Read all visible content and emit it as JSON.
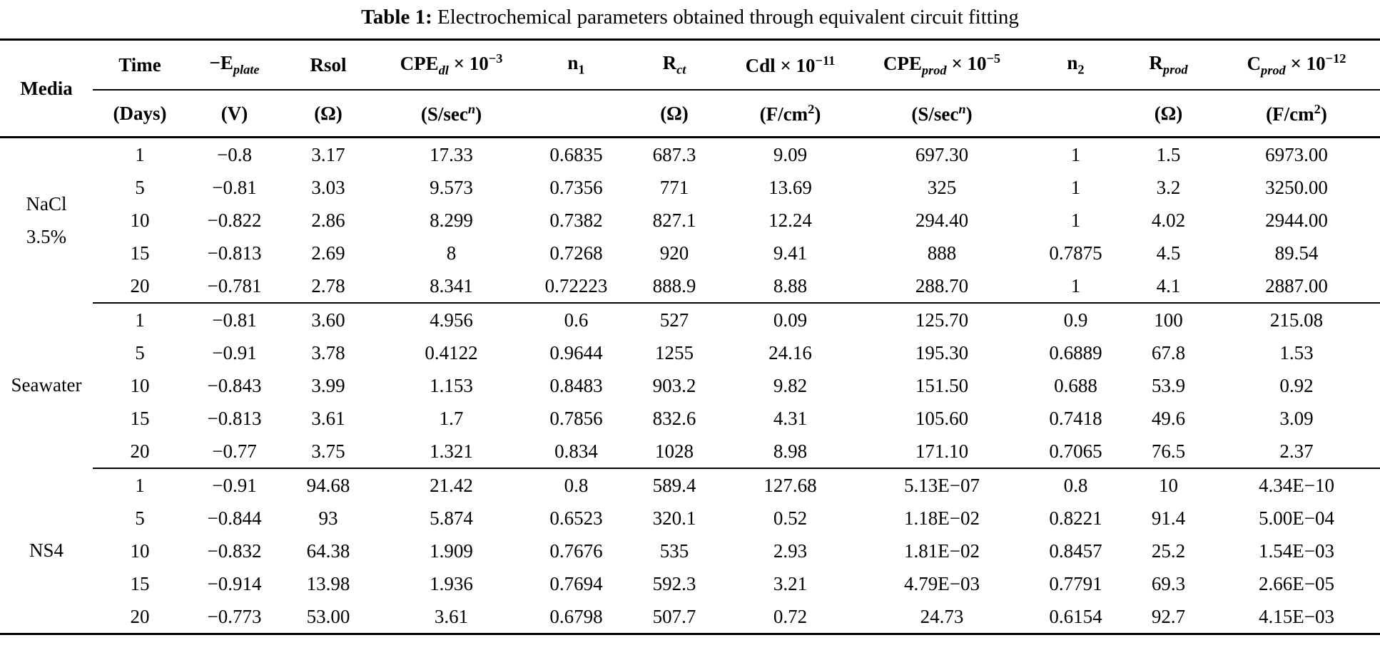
{
  "caption": {
    "label": "Table 1:",
    "text": "Electrochemical parameters obtained through equivalent circuit fitting"
  },
  "table": {
    "header": {
      "media": [
        {
          "t": "t",
          "v": "Media"
        }
      ],
      "row1": [
        {
          "id": "time",
          "parts": [
            {
              "t": "t",
              "v": "Time"
            }
          ]
        },
        {
          "id": "e-plate",
          "parts": [
            {
              "t": "t",
              "v": "−E"
            },
            {
              "t": "sb",
              "v": "plate"
            }
          ]
        },
        {
          "id": "rsol",
          "parts": [
            {
              "t": "t",
              "v": "Rsol"
            }
          ]
        },
        {
          "id": "cpe-dl",
          "parts": [
            {
              "t": "t",
              "v": "CPE"
            },
            {
              "t": "sb",
              "v": "dl"
            },
            {
              "t": "t",
              "v": " × 10"
            },
            {
              "t": "sp",
              "v": "−3"
            }
          ]
        },
        {
          "id": "n1",
          "parts": [
            {
              "t": "t",
              "v": "n"
            },
            {
              "t": "sbn",
              "v": "1"
            }
          ]
        },
        {
          "id": "r-ct",
          "parts": [
            {
              "t": "t",
              "v": "R"
            },
            {
              "t": "sb",
              "v": "ct"
            }
          ]
        },
        {
          "id": "cdl",
          "parts": [
            {
              "t": "t",
              "v": "Cdl × 10"
            },
            {
              "t": "sp",
              "v": "−11"
            }
          ]
        },
        {
          "id": "cpe-prod",
          "parts": [
            {
              "t": "t",
              "v": "CPE"
            },
            {
              "t": "sb",
              "v": "prod"
            },
            {
              "t": "t",
              "v": " × 10"
            },
            {
              "t": "sp",
              "v": "−5"
            }
          ]
        },
        {
          "id": "n2",
          "parts": [
            {
              "t": "t",
              "v": "n"
            },
            {
              "t": "sbn",
              "v": "2"
            }
          ]
        },
        {
          "id": "r-prod",
          "parts": [
            {
              "t": "t",
              "v": "R"
            },
            {
              "t": "sb",
              "v": "prod"
            }
          ]
        },
        {
          "id": "c-prod",
          "parts": [
            {
              "t": "t",
              "v": "C"
            },
            {
              "t": "sb",
              "v": "prod"
            },
            {
              "t": "t",
              "v": " × 10"
            },
            {
              "t": "sp",
              "v": "−12"
            }
          ]
        }
      ],
      "row2": [
        {
          "id": "time",
          "parts": [
            {
              "t": "t",
              "v": "(Days)"
            }
          ]
        },
        {
          "id": "e-plate",
          "parts": [
            {
              "t": "t",
              "v": "(V)"
            }
          ]
        },
        {
          "id": "rsol",
          "parts": [
            {
              "t": "t",
              "v": "(Ω)"
            }
          ]
        },
        {
          "id": "cpe-dl",
          "parts": [
            {
              "t": "t",
              "v": "(S/sec"
            },
            {
              "t": "spi",
              "v": "n"
            },
            {
              "t": "t",
              "v": ")"
            }
          ]
        },
        {
          "id": "n1",
          "parts": []
        },
        {
          "id": "r-ct",
          "parts": [
            {
              "t": "t",
              "v": "(Ω)"
            }
          ]
        },
        {
          "id": "cdl",
          "parts": [
            {
              "t": "t",
              "v": "(F/cm"
            },
            {
              "t": "sp",
              "v": "2"
            },
            {
              "t": "t",
              "v": ")"
            }
          ]
        },
        {
          "id": "cpe-prod",
          "parts": [
            {
              "t": "t",
              "v": "(S/sec"
            },
            {
              "t": "spi",
              "v": "n"
            },
            {
              "t": "t",
              "v": ")"
            }
          ]
        },
        {
          "id": "n2",
          "parts": []
        },
        {
          "id": "r-prod",
          "parts": [
            {
              "t": "t",
              "v": "(Ω)"
            }
          ]
        },
        {
          "id": "c-prod",
          "parts": [
            {
              "t": "t",
              "v": "(F/cm"
            },
            {
              "t": "sp",
              "v": "2"
            },
            {
              "t": "t",
              "v": ")"
            }
          ]
        }
      ]
    },
    "column_ids": [
      "time",
      "e-plate",
      "rsol",
      "cpe-dl",
      "n1",
      "r-ct",
      "cdl",
      "cpe-prod",
      "n2",
      "r-prod",
      "c-prod"
    ],
    "groups": [
      {
        "media_id": "nacl",
        "media_lines": [
          "NaCl",
          "3.5%"
        ],
        "rows": [
          [
            "1",
            "−0.8",
            "3.17",
            "17.33",
            "0.6835",
            "687.3",
            "9.09",
            "697.30",
            "1",
            "1.5",
            "6973.00"
          ],
          [
            "5",
            "−0.81",
            "3.03",
            "9.573",
            "0.7356",
            "771",
            "13.69",
            "325",
            "1",
            "3.2",
            "3250.00"
          ],
          [
            "10",
            "−0.822",
            "2.86",
            "8.299",
            "0.7382",
            "827.1",
            "12.24",
            "294.40",
            "1",
            "4.02",
            "2944.00"
          ],
          [
            "15",
            "−0.813",
            "2.69",
            "8",
            "0.7268",
            "920",
            "9.41",
            "888",
            "0.7875",
            "4.5",
            "89.54"
          ],
          [
            "20",
            "−0.781",
            "2.78",
            "8.341",
            "0.72223",
            "888.9",
            "8.88",
            "288.70",
            "1",
            "4.1",
            "2887.00"
          ]
        ]
      },
      {
        "media_id": "seawater",
        "media_lines": [
          "Seawater"
        ],
        "rows": [
          [
            "1",
            "−0.81",
            "3.60",
            "4.956",
            "0.6",
            "527",
            "0.09",
            "125.70",
            "0.9",
            "100",
            "215.08"
          ],
          [
            "5",
            "−0.91",
            "3.78",
            "0.4122",
            "0.9644",
            "1255",
            "24.16",
            "195.30",
            "0.6889",
            "67.8",
            "1.53"
          ],
          [
            "10",
            "−0.843",
            "3.99",
            "1.153",
            "0.8483",
            "903.2",
            "9.82",
            "151.50",
            "0.688",
            "53.9",
            "0.92"
          ],
          [
            "15",
            "−0.813",
            "3.61",
            "1.7",
            "0.7856",
            "832.6",
            "4.31",
            "105.60",
            "0.7418",
            "49.6",
            "3.09"
          ],
          [
            "20",
            "−0.77",
            "3.75",
            "1.321",
            "0.834",
            "1028",
            "8.98",
            "171.10",
            "0.7065",
            "76.5",
            "2.37"
          ]
        ]
      },
      {
        "media_id": "ns4",
        "media_lines": [
          "NS4"
        ],
        "rows": [
          [
            "1",
            "−0.91",
            "94.68",
            "21.42",
            "0.8",
            "589.4",
            "127.68",
            "5.13E−07",
            "0.8",
            "10",
            "4.34E−10"
          ],
          [
            "5",
            "−0.844",
            "93",
            "5.874",
            "0.6523",
            "320.1",
            "0.52",
            "1.18E−02",
            "0.8221",
            "91.4",
            "5.00E−04"
          ],
          [
            "10",
            "−0.832",
            "64.38",
            "1.909",
            "0.7676",
            "535",
            "2.93",
            "1.81E−02",
            "0.8457",
            "25.2",
            "1.54E−03"
          ],
          [
            "15",
            "−0.914",
            "13.98",
            "1.936",
            "0.7694",
            "592.3",
            "3.21",
            "4.79E−03",
            "0.7791",
            "69.3",
            "2.66E−05"
          ],
          [
            "20",
            "−0.773",
            "53.00",
            "3.61",
            "0.6798",
            "507.7",
            "0.72",
            "24.73",
            "0.6154",
            "92.7",
            "4.15E−03"
          ]
        ]
      }
    ]
  }
}
